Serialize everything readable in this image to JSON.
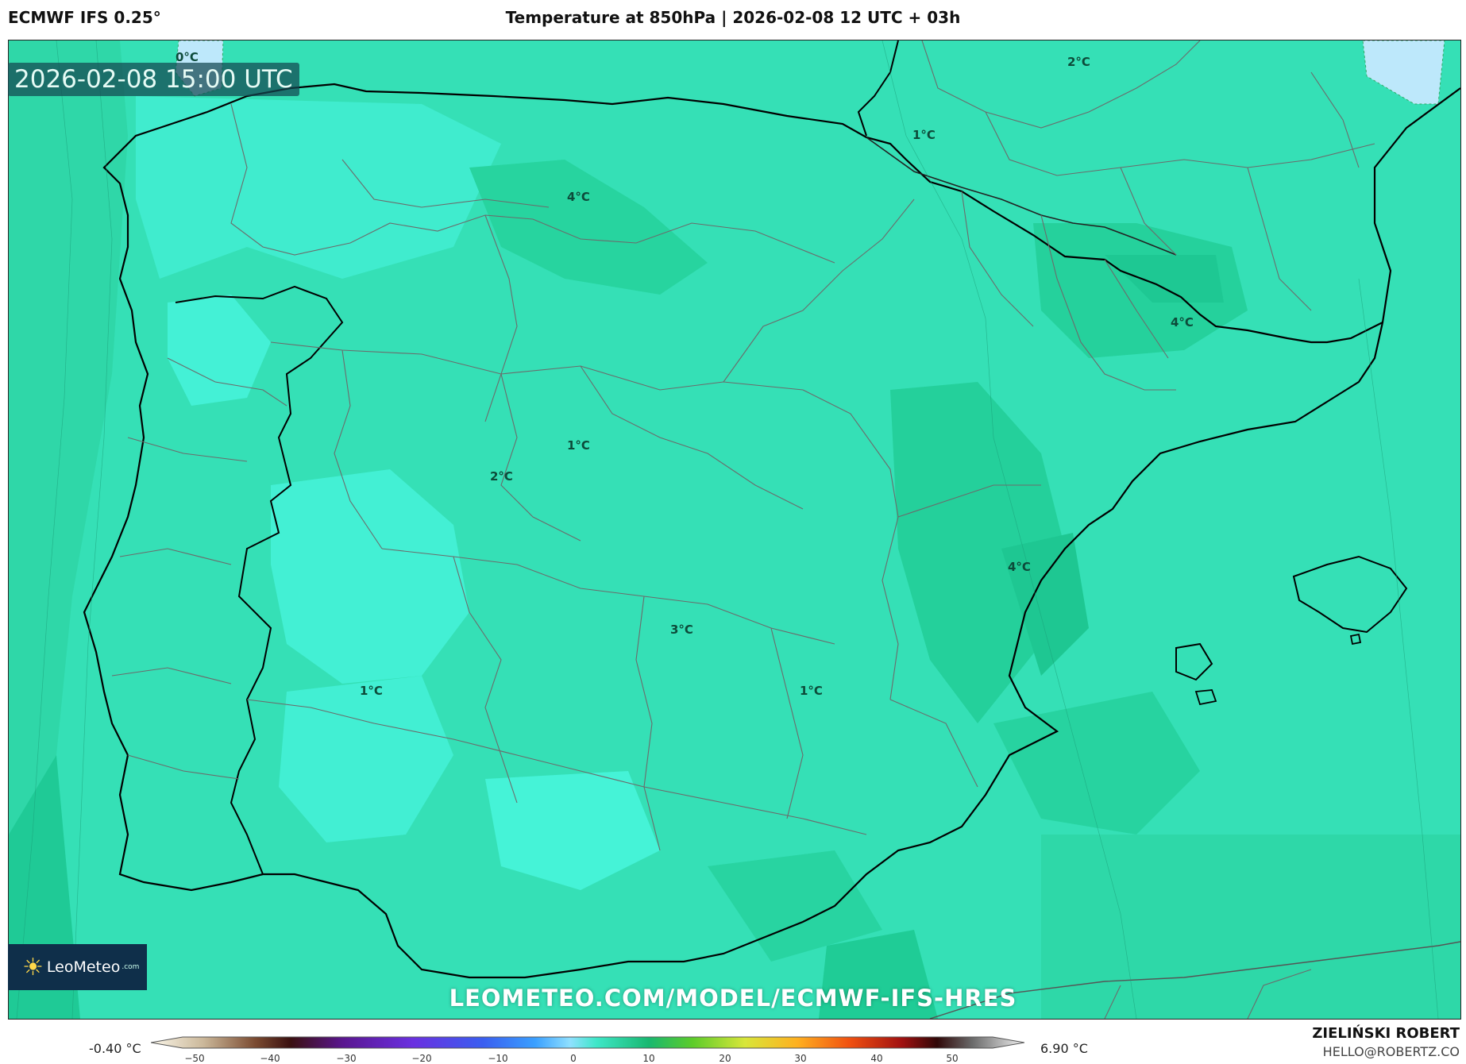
{
  "header": {
    "model": "ECMWF IFS 0.25°",
    "title": "Temperature at 850hPa | 2026-02-08 12 UTC + 03h"
  },
  "map": {
    "timestamp": "2026-02-08 15:00 UTC",
    "contour_labels": [
      {
        "text": "0°C"
      },
      {
        "text": "2°C"
      },
      {
        "text": "1°C"
      },
      {
        "text": "4°C"
      },
      {
        "text": "4°C"
      },
      {
        "text": "1°C"
      },
      {
        "text": "2°C"
      },
      {
        "text": "4°C"
      },
      {
        "text": "3°C"
      },
      {
        "text": "1°C"
      },
      {
        "text": "1°C"
      }
    ],
    "colors": {
      "base": "#35e0b6",
      "warm": "#22cf9b",
      "cool": "#42efd3",
      "cold_zero": "#b9e8fb",
      "coast": "#000000",
      "border": "#6b6b6b"
    }
  },
  "logo": {
    "name": "LeoMeteo",
    "suffix": ".com"
  },
  "watermark": "LEOMETEO.COM/MODEL/ECMWF-IFS-HRES",
  "colorbar": {
    "min_label": "-0.40 °C",
    "max_label": "6.90 °C",
    "ticks": [
      "−50",
      "−40",
      "−30",
      "−20",
      "−10",
      "0",
      "10",
      "20",
      "30",
      "40",
      "50"
    ]
  },
  "credit": {
    "author": "ZIELIŃSKI ROBERT",
    "email": "HELLO@ROBERTZ.CO"
  }
}
